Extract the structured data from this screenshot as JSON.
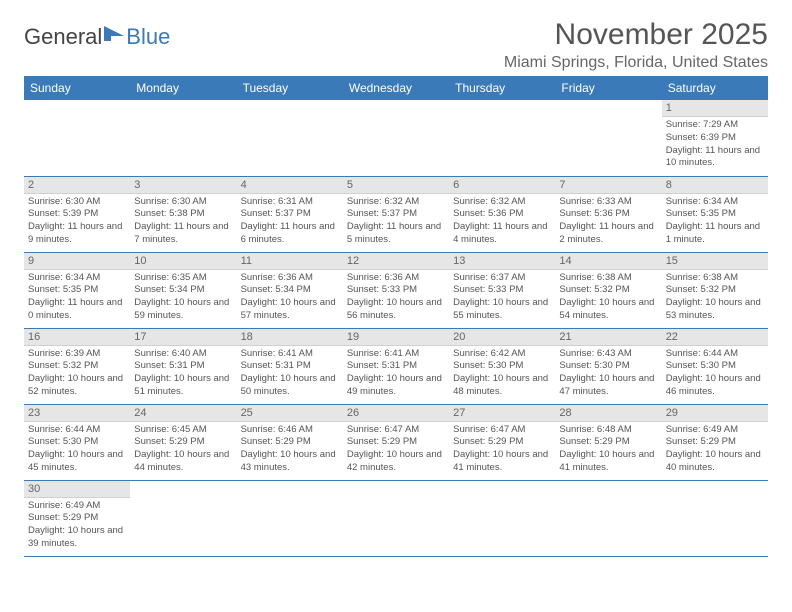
{
  "logo": {
    "text1": "General",
    "text2": "Blue"
  },
  "title": "November 2025",
  "location": "Miami Springs, Florida, United States",
  "colors": {
    "header_bg": "#3a7ab8",
    "header_text": "#ffffff",
    "daynum_bg": "#e6e6e6",
    "row_border": "#3a7ab8",
    "text": "#555555"
  },
  "weekdays": [
    "Sunday",
    "Monday",
    "Tuesday",
    "Wednesday",
    "Thursday",
    "Friday",
    "Saturday"
  ],
  "weeks": [
    [
      {
        "blank": true
      },
      {
        "blank": true
      },
      {
        "blank": true
      },
      {
        "blank": true
      },
      {
        "blank": true
      },
      {
        "blank": true
      },
      {
        "day": "1",
        "sunrise": "Sunrise: 7:29 AM",
        "sunset": "Sunset: 6:39 PM",
        "daylight": "Daylight: 11 hours and 10 minutes."
      }
    ],
    [
      {
        "day": "2",
        "sunrise": "Sunrise: 6:30 AM",
        "sunset": "Sunset: 5:39 PM",
        "daylight": "Daylight: 11 hours and 9 minutes."
      },
      {
        "day": "3",
        "sunrise": "Sunrise: 6:30 AM",
        "sunset": "Sunset: 5:38 PM",
        "daylight": "Daylight: 11 hours and 7 minutes."
      },
      {
        "day": "4",
        "sunrise": "Sunrise: 6:31 AM",
        "sunset": "Sunset: 5:37 PM",
        "daylight": "Daylight: 11 hours and 6 minutes."
      },
      {
        "day": "5",
        "sunrise": "Sunrise: 6:32 AM",
        "sunset": "Sunset: 5:37 PM",
        "daylight": "Daylight: 11 hours and 5 minutes."
      },
      {
        "day": "6",
        "sunrise": "Sunrise: 6:32 AM",
        "sunset": "Sunset: 5:36 PM",
        "daylight": "Daylight: 11 hours and 4 minutes."
      },
      {
        "day": "7",
        "sunrise": "Sunrise: 6:33 AM",
        "sunset": "Sunset: 5:36 PM",
        "daylight": "Daylight: 11 hours and 2 minutes."
      },
      {
        "day": "8",
        "sunrise": "Sunrise: 6:34 AM",
        "sunset": "Sunset: 5:35 PM",
        "daylight": "Daylight: 11 hours and 1 minute."
      }
    ],
    [
      {
        "day": "9",
        "sunrise": "Sunrise: 6:34 AM",
        "sunset": "Sunset: 5:35 PM",
        "daylight": "Daylight: 11 hours and 0 minutes."
      },
      {
        "day": "10",
        "sunrise": "Sunrise: 6:35 AM",
        "sunset": "Sunset: 5:34 PM",
        "daylight": "Daylight: 10 hours and 59 minutes."
      },
      {
        "day": "11",
        "sunrise": "Sunrise: 6:36 AM",
        "sunset": "Sunset: 5:34 PM",
        "daylight": "Daylight: 10 hours and 57 minutes."
      },
      {
        "day": "12",
        "sunrise": "Sunrise: 6:36 AM",
        "sunset": "Sunset: 5:33 PM",
        "daylight": "Daylight: 10 hours and 56 minutes."
      },
      {
        "day": "13",
        "sunrise": "Sunrise: 6:37 AM",
        "sunset": "Sunset: 5:33 PM",
        "daylight": "Daylight: 10 hours and 55 minutes."
      },
      {
        "day": "14",
        "sunrise": "Sunrise: 6:38 AM",
        "sunset": "Sunset: 5:32 PM",
        "daylight": "Daylight: 10 hours and 54 minutes."
      },
      {
        "day": "15",
        "sunrise": "Sunrise: 6:38 AM",
        "sunset": "Sunset: 5:32 PM",
        "daylight": "Daylight: 10 hours and 53 minutes."
      }
    ],
    [
      {
        "day": "16",
        "sunrise": "Sunrise: 6:39 AM",
        "sunset": "Sunset: 5:32 PM",
        "daylight": "Daylight: 10 hours and 52 minutes."
      },
      {
        "day": "17",
        "sunrise": "Sunrise: 6:40 AM",
        "sunset": "Sunset: 5:31 PM",
        "daylight": "Daylight: 10 hours and 51 minutes."
      },
      {
        "day": "18",
        "sunrise": "Sunrise: 6:41 AM",
        "sunset": "Sunset: 5:31 PM",
        "daylight": "Daylight: 10 hours and 50 minutes."
      },
      {
        "day": "19",
        "sunrise": "Sunrise: 6:41 AM",
        "sunset": "Sunset: 5:31 PM",
        "daylight": "Daylight: 10 hours and 49 minutes."
      },
      {
        "day": "20",
        "sunrise": "Sunrise: 6:42 AM",
        "sunset": "Sunset: 5:30 PM",
        "daylight": "Daylight: 10 hours and 48 minutes."
      },
      {
        "day": "21",
        "sunrise": "Sunrise: 6:43 AM",
        "sunset": "Sunset: 5:30 PM",
        "daylight": "Daylight: 10 hours and 47 minutes."
      },
      {
        "day": "22",
        "sunrise": "Sunrise: 6:44 AM",
        "sunset": "Sunset: 5:30 PM",
        "daylight": "Daylight: 10 hours and 46 minutes."
      }
    ],
    [
      {
        "day": "23",
        "sunrise": "Sunrise: 6:44 AM",
        "sunset": "Sunset: 5:30 PM",
        "daylight": "Daylight: 10 hours and 45 minutes."
      },
      {
        "day": "24",
        "sunrise": "Sunrise: 6:45 AM",
        "sunset": "Sunset: 5:29 PM",
        "daylight": "Daylight: 10 hours and 44 minutes."
      },
      {
        "day": "25",
        "sunrise": "Sunrise: 6:46 AM",
        "sunset": "Sunset: 5:29 PM",
        "daylight": "Daylight: 10 hours and 43 minutes."
      },
      {
        "day": "26",
        "sunrise": "Sunrise: 6:47 AM",
        "sunset": "Sunset: 5:29 PM",
        "daylight": "Daylight: 10 hours and 42 minutes."
      },
      {
        "day": "27",
        "sunrise": "Sunrise: 6:47 AM",
        "sunset": "Sunset: 5:29 PM",
        "daylight": "Daylight: 10 hours and 41 minutes."
      },
      {
        "day": "28",
        "sunrise": "Sunrise: 6:48 AM",
        "sunset": "Sunset: 5:29 PM",
        "daylight": "Daylight: 10 hours and 41 minutes."
      },
      {
        "day": "29",
        "sunrise": "Sunrise: 6:49 AM",
        "sunset": "Sunset: 5:29 PM",
        "daylight": "Daylight: 10 hours and 40 minutes."
      }
    ],
    [
      {
        "day": "30",
        "sunrise": "Sunrise: 6:49 AM",
        "sunset": "Sunset: 5:29 PM",
        "daylight": "Daylight: 10 hours and 39 minutes."
      },
      {
        "trailing": true
      },
      {
        "trailing": true
      },
      {
        "trailing": true
      },
      {
        "trailing": true
      },
      {
        "trailing": true
      },
      {
        "trailing": true
      }
    ]
  ]
}
